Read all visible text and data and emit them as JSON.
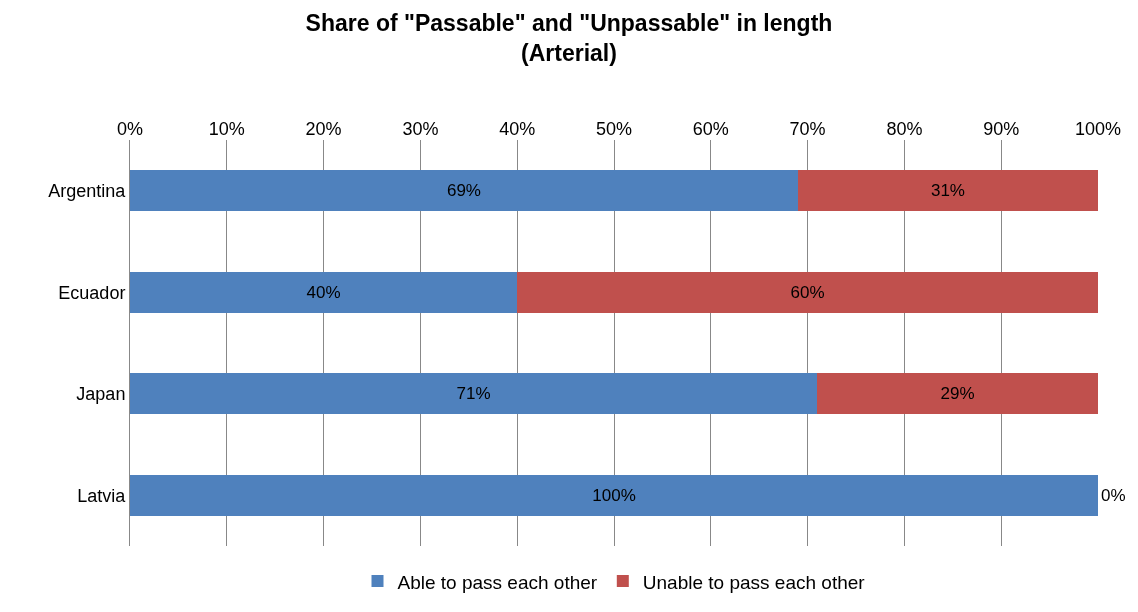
{
  "chart_data": {
    "type": "bar",
    "orientation": "horizontal",
    "stacked": true,
    "title": "Share of \"Passable\" and \"Unpassable\" in length\n(Arterial)",
    "categories": [
      "Argentina",
      "Ecuador",
      "Japan",
      "Latvia"
    ],
    "series": [
      {
        "name": "Able to pass each other",
        "color": "#4f81bd",
        "values": [
          69,
          40,
          71,
          100
        ],
        "value_labels": [
          "69%",
          "40%",
          "71%",
          "100%"
        ]
      },
      {
        "name": "Unable to pass each other",
        "color": "#c0504d",
        "values": [
          31,
          60,
          29,
          0
        ],
        "value_labels": [
          "31%",
          "60%",
          "29%",
          "0%"
        ]
      }
    ],
    "xlim": [
      0,
      100
    ],
    "xticks": [
      {
        "value": 0,
        "label": "0%"
      },
      {
        "value": 10,
        "label": "10%"
      },
      {
        "value": 20,
        "label": "20%"
      },
      {
        "value": 30,
        "label": "30%"
      },
      {
        "value": 40,
        "label": "40%"
      },
      {
        "value": 50,
        "label": "50%"
      },
      {
        "value": 60,
        "label": "60%"
      },
      {
        "value": 70,
        "label": "70%"
      },
      {
        "value": 80,
        "label": "80%"
      },
      {
        "value": 90,
        "label": "90%"
      },
      {
        "value": 100,
        "label": "100%"
      }
    ],
    "grid": "x",
    "legend": "bottom"
  }
}
